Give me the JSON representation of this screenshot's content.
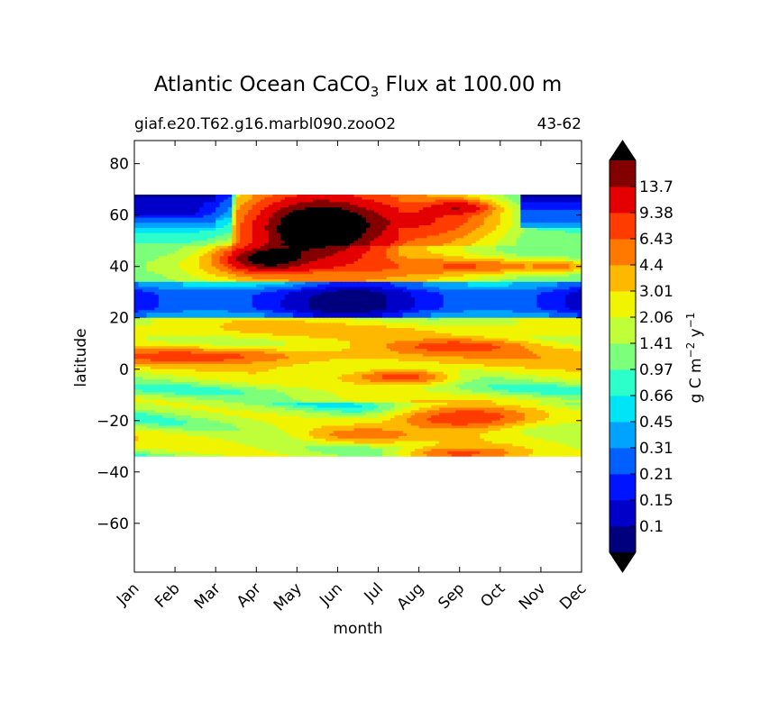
{
  "chart_data": {
    "type": "heatmap",
    "title_prefix": "Atlantic Ocean CaCO",
    "title_subscript": "3",
    "title_suffix": " Flux at 100.00 m",
    "subtitle_left": "giaf.e20.T62.g16.marbl090.zooO2",
    "subtitle_right": "43-62",
    "xlabel": "month",
    "ylabel": "latitude",
    "x_categories": [
      "Jan",
      "Feb",
      "Mar",
      "Apr",
      "May",
      "Jun",
      "Jul",
      "Aug",
      "Sep",
      "Oct",
      "Nov",
      "Dec"
    ],
    "x_range": [
      0,
      11
    ],
    "y_ticks": [
      -60,
      -40,
      -20,
      0,
      20,
      40,
      60,
      80
    ],
    "y_tick_labels": [
      "−60",
      "−40",
      "−20",
      "0",
      "20",
      "40",
      "60",
      "80"
    ],
    "ylim": [
      -79,
      89
    ],
    "data_lat_range": [
      -34,
      68
    ],
    "colorbar": {
      "label_main": "g C m",
      "label_exp1": "−2",
      "label_mid": " y",
      "label_exp2": "−1",
      "levels": [
        0.1,
        0.15,
        0.21,
        0.31,
        0.45,
        0.66,
        0.97,
        1.41,
        2.06,
        3.01,
        4.4,
        6.43,
        9.38,
        13.7
      ],
      "level_labels": [
        "0.1",
        "0.15",
        "0.21",
        "0.31",
        "0.45",
        "0.66",
        "0.97",
        "1.41",
        "2.06",
        "3.01",
        "4.4",
        "6.43",
        "9.38",
        "13.7"
      ],
      "colors": [
        "#00007f",
        "#0000c8",
        "#0014ff",
        "#0060ff",
        "#00a4ff",
        "#00e4f8",
        "#2cffca",
        "#7cff7a",
        "#beff3a",
        "#f0f400",
        "#ffb800",
        "#ff7800",
        "#ff3c00",
        "#e40000",
        "#820000"
      ],
      "under_color": "#000000",
      "over_color": "#000000"
    },
    "features": [
      {
        "month": 4.2,
        "lat": 52,
        "value": 20,
        "note": "very high bloom maximum Apr-Jun 38-68N"
      },
      {
        "month": 8.0,
        "lat": 63,
        "value": 11,
        "note": "high flux Sep near 63N"
      },
      {
        "month": 8.0,
        "lat": -19,
        "value": 10,
        "note": "high flux Aug-Sep near 20S"
      },
      {
        "month": 6.5,
        "lat": -3,
        "value": 9,
        "note": "high flux Jul-Aug near equator"
      },
      {
        "month": 8.0,
        "lat": 9,
        "value": 8,
        "note": "high flux Aug-Sep near 9N"
      },
      {
        "month": 5.5,
        "lat": 26,
        "value": 0.2,
        "note": "oligotrophic minimum 22-32N"
      },
      {
        "month": 0.5,
        "lat": 65,
        "value": 0.1,
        "note": "winter minimum high north Jan-Feb"
      },
      {
        "month": 10.5,
        "lat": 65,
        "value": 0.1,
        "note": "winter minimum high north Nov-Dec"
      }
    ]
  }
}
